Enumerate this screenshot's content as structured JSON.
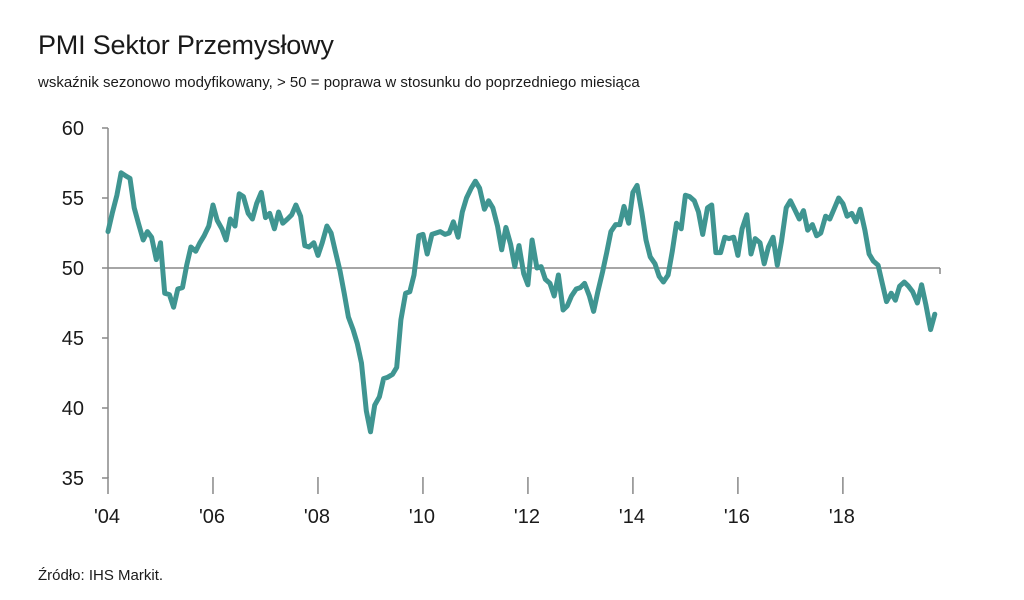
{
  "title": "PMI Sektor Przemysłowy",
  "subtitle": "wskaźnik sezonowo modyfikowany, > 50 = poprawa w stosunku do poprzedniego miesiąca",
  "source": "Źródło:  IHS Markit.",
  "colors": {
    "line": "#3f9591",
    "axis": "#888888",
    "text": "#1a1a1a"
  },
  "chart_data": {
    "type": "line",
    "title": "PMI Sektor Przemysłowy",
    "subtitle": "wskaźnik sezonowo modyfikowany, > 50 = poprawa w stosunku do poprzedniego miesiąca",
    "xlabel": "",
    "ylabel": "",
    "ylim": [
      35,
      60
    ],
    "xlim": [
      2004.0,
      2019.85
    ],
    "yticks": [
      35,
      40,
      45,
      50,
      55,
      60
    ],
    "xticks": [
      {
        "value": 2004,
        "label": "'04"
      },
      {
        "value": 2006,
        "label": "'06"
      },
      {
        "value": 2008,
        "label": "'08"
      },
      {
        "value": 2010,
        "label": "'10"
      },
      {
        "value": 2012,
        "label": "'12"
      },
      {
        "value": 2014,
        "label": "'14"
      },
      {
        "value": 2016,
        "label": "'16"
      },
      {
        "value": 2018,
        "label": "'18"
      }
    ],
    "reference_line": 50,
    "grid": false,
    "legend": "none",
    "series": [
      {
        "points": [
          [
            2004.0,
            52.6
          ],
          [
            2004.08,
            53.9
          ],
          [
            2004.17,
            55.2
          ],
          [
            2004.25,
            56.8
          ],
          [
            2004.33,
            56.6
          ],
          [
            2004.42,
            56.4
          ],
          [
            2004.5,
            54.3
          ],
          [
            2004.58,
            53.2
          ],
          [
            2004.67,
            52.0
          ],
          [
            2004.75,
            52.6
          ],
          [
            2004.83,
            52.2
          ],
          [
            2004.92,
            50.6
          ],
          [
            2005.0,
            51.8
          ],
          [
            2005.08,
            48.2
          ],
          [
            2005.17,
            48.1
          ],
          [
            2005.25,
            47.2
          ],
          [
            2005.33,
            48.5
          ],
          [
            2005.42,
            48.6
          ],
          [
            2005.5,
            50.2
          ],
          [
            2005.58,
            51.5
          ],
          [
            2005.67,
            51.2
          ],
          [
            2005.75,
            51.8
          ],
          [
            2005.83,
            52.3
          ],
          [
            2005.92,
            53.0
          ],
          [
            2006.0,
            54.5
          ],
          [
            2006.08,
            53.4
          ],
          [
            2006.17,
            52.8
          ],
          [
            2006.25,
            52.0
          ],
          [
            2006.33,
            53.5
          ],
          [
            2006.42,
            53.0
          ],
          [
            2006.5,
            55.3
          ],
          [
            2006.58,
            55.1
          ],
          [
            2006.67,
            53.9
          ],
          [
            2006.75,
            53.5
          ],
          [
            2006.83,
            54.6
          ],
          [
            2006.92,
            55.4
          ],
          [
            2007.0,
            53.6
          ],
          [
            2007.08,
            53.9
          ],
          [
            2007.17,
            52.8
          ],
          [
            2007.25,
            54.0
          ],
          [
            2007.33,
            53.2
          ],
          [
            2007.42,
            53.5
          ],
          [
            2007.5,
            53.8
          ],
          [
            2007.58,
            54.5
          ],
          [
            2007.67,
            53.7
          ],
          [
            2007.75,
            51.6
          ],
          [
            2007.83,
            51.5
          ],
          [
            2007.92,
            51.8
          ],
          [
            2008.0,
            50.9
          ],
          [
            2008.08,
            51.8
          ],
          [
            2008.17,
            53.0
          ],
          [
            2008.25,
            52.5
          ],
          [
            2008.33,
            51.2
          ],
          [
            2008.42,
            49.8
          ],
          [
            2008.5,
            48.2
          ],
          [
            2008.58,
            46.5
          ],
          [
            2008.67,
            45.6
          ],
          [
            2008.75,
            44.6
          ],
          [
            2008.83,
            43.2
          ],
          [
            2008.92,
            39.8
          ],
          [
            2009.0,
            38.3
          ],
          [
            2009.08,
            40.2
          ],
          [
            2009.17,
            40.8
          ],
          [
            2009.25,
            42.1
          ],
          [
            2009.33,
            42.2
          ],
          [
            2009.42,
            42.4
          ],
          [
            2009.5,
            42.9
          ],
          [
            2009.58,
            46.3
          ],
          [
            2009.67,
            48.2
          ],
          [
            2009.75,
            48.3
          ],
          [
            2009.83,
            49.5
          ],
          [
            2009.92,
            52.3
          ],
          [
            2010.0,
            52.4
          ],
          [
            2010.08,
            51.0
          ],
          [
            2010.17,
            52.4
          ],
          [
            2010.25,
            52.5
          ],
          [
            2010.33,
            52.6
          ],
          [
            2010.42,
            52.4
          ],
          [
            2010.5,
            52.5
          ],
          [
            2010.58,
            53.3
          ],
          [
            2010.67,
            52.2
          ],
          [
            2010.75,
            54.0
          ],
          [
            2010.83,
            55.0
          ],
          [
            2010.92,
            55.7
          ],
          [
            2011.0,
            56.2
          ],
          [
            2011.08,
            55.7
          ],
          [
            2011.17,
            54.2
          ],
          [
            2011.25,
            54.8
          ],
          [
            2011.33,
            54.3
          ],
          [
            2011.42,
            53.0
          ],
          [
            2011.5,
            51.3
          ],
          [
            2011.58,
            52.9
          ],
          [
            2011.67,
            51.7
          ],
          [
            2011.75,
            50.1
          ],
          [
            2011.83,
            51.6
          ],
          [
            2011.92,
            49.6
          ],
          [
            2012.0,
            48.8
          ],
          [
            2012.08,
            52.0
          ],
          [
            2012.17,
            50.0
          ],
          [
            2012.25,
            50.1
          ],
          [
            2012.33,
            49.2
          ],
          [
            2012.42,
            48.9
          ],
          [
            2012.5,
            48.0
          ],
          [
            2012.58,
            49.5
          ],
          [
            2012.67,
            47.0
          ],
          [
            2012.75,
            47.3
          ],
          [
            2012.83,
            48.0
          ],
          [
            2012.92,
            48.5
          ],
          [
            2013.0,
            48.6
          ],
          [
            2013.08,
            48.9
          ],
          [
            2013.17,
            48.0
          ],
          [
            2013.25,
            46.9
          ],
          [
            2013.33,
            48.3
          ],
          [
            2013.42,
            49.7
          ],
          [
            2013.5,
            51.1
          ],
          [
            2013.58,
            52.6
          ],
          [
            2013.67,
            53.1
          ],
          [
            2013.75,
            53.1
          ],
          [
            2013.83,
            54.4
          ],
          [
            2013.92,
            53.2
          ],
          [
            2014.0,
            55.4
          ],
          [
            2014.08,
            55.9
          ],
          [
            2014.17,
            54.0
          ],
          [
            2014.25,
            52.0
          ],
          [
            2014.33,
            50.8
          ],
          [
            2014.42,
            50.3
          ],
          [
            2014.5,
            49.4
          ],
          [
            2014.58,
            49.0
          ],
          [
            2014.67,
            49.5
          ],
          [
            2014.75,
            51.2
          ],
          [
            2014.83,
            53.2
          ],
          [
            2014.92,
            52.8
          ],
          [
            2015.0,
            55.2
          ],
          [
            2015.08,
            55.1
          ],
          [
            2015.17,
            54.8
          ],
          [
            2015.25,
            54.0
          ],
          [
            2015.33,
            52.4
          ],
          [
            2015.42,
            54.3
          ],
          [
            2015.5,
            54.5
          ],
          [
            2015.58,
            51.1
          ],
          [
            2015.67,
            51.1
          ],
          [
            2015.75,
            52.2
          ],
          [
            2015.83,
            52.1
          ],
          [
            2015.92,
            52.2
          ],
          [
            2016.0,
            50.9
          ],
          [
            2016.08,
            52.8
          ],
          [
            2016.17,
            53.8
          ],
          [
            2016.25,
            51.0
          ],
          [
            2016.33,
            52.1
          ],
          [
            2016.42,
            51.8
          ],
          [
            2016.5,
            50.3
          ],
          [
            2016.58,
            51.5
          ],
          [
            2016.67,
            52.2
          ],
          [
            2016.75,
            50.2
          ],
          [
            2016.83,
            51.9
          ],
          [
            2016.92,
            54.3
          ],
          [
            2017.0,
            54.8
          ],
          [
            2017.08,
            54.2
          ],
          [
            2017.17,
            53.5
          ],
          [
            2017.25,
            54.1
          ],
          [
            2017.33,
            52.7
          ],
          [
            2017.42,
            53.1
          ],
          [
            2017.5,
            52.3
          ],
          [
            2017.58,
            52.5
          ],
          [
            2017.67,
            53.7
          ],
          [
            2017.75,
            53.5
          ],
          [
            2017.83,
            54.2
          ],
          [
            2017.92,
            55.0
          ],
          [
            2018.0,
            54.6
          ],
          [
            2018.08,
            53.7
          ],
          [
            2018.17,
            53.9
          ],
          [
            2018.25,
            53.3
          ],
          [
            2018.33,
            54.2
          ],
          [
            2018.42,
            52.7
          ],
          [
            2018.5,
            51.0
          ],
          [
            2018.58,
            50.5
          ],
          [
            2018.67,
            50.2
          ],
          [
            2018.75,
            48.9
          ],
          [
            2018.83,
            47.6
          ],
          [
            2018.92,
            48.2
          ],
          [
            2019.0,
            47.7
          ],
          [
            2019.08,
            48.7
          ],
          [
            2019.17,
            49.0
          ],
          [
            2019.25,
            48.7
          ],
          [
            2019.33,
            48.3
          ],
          [
            2019.42,
            47.5
          ],
          [
            2019.5,
            48.8
          ],
          [
            2019.58,
            47.4
          ],
          [
            2019.67,
            45.6
          ],
          [
            2019.75,
            46.7
          ]
        ]
      }
    ]
  }
}
